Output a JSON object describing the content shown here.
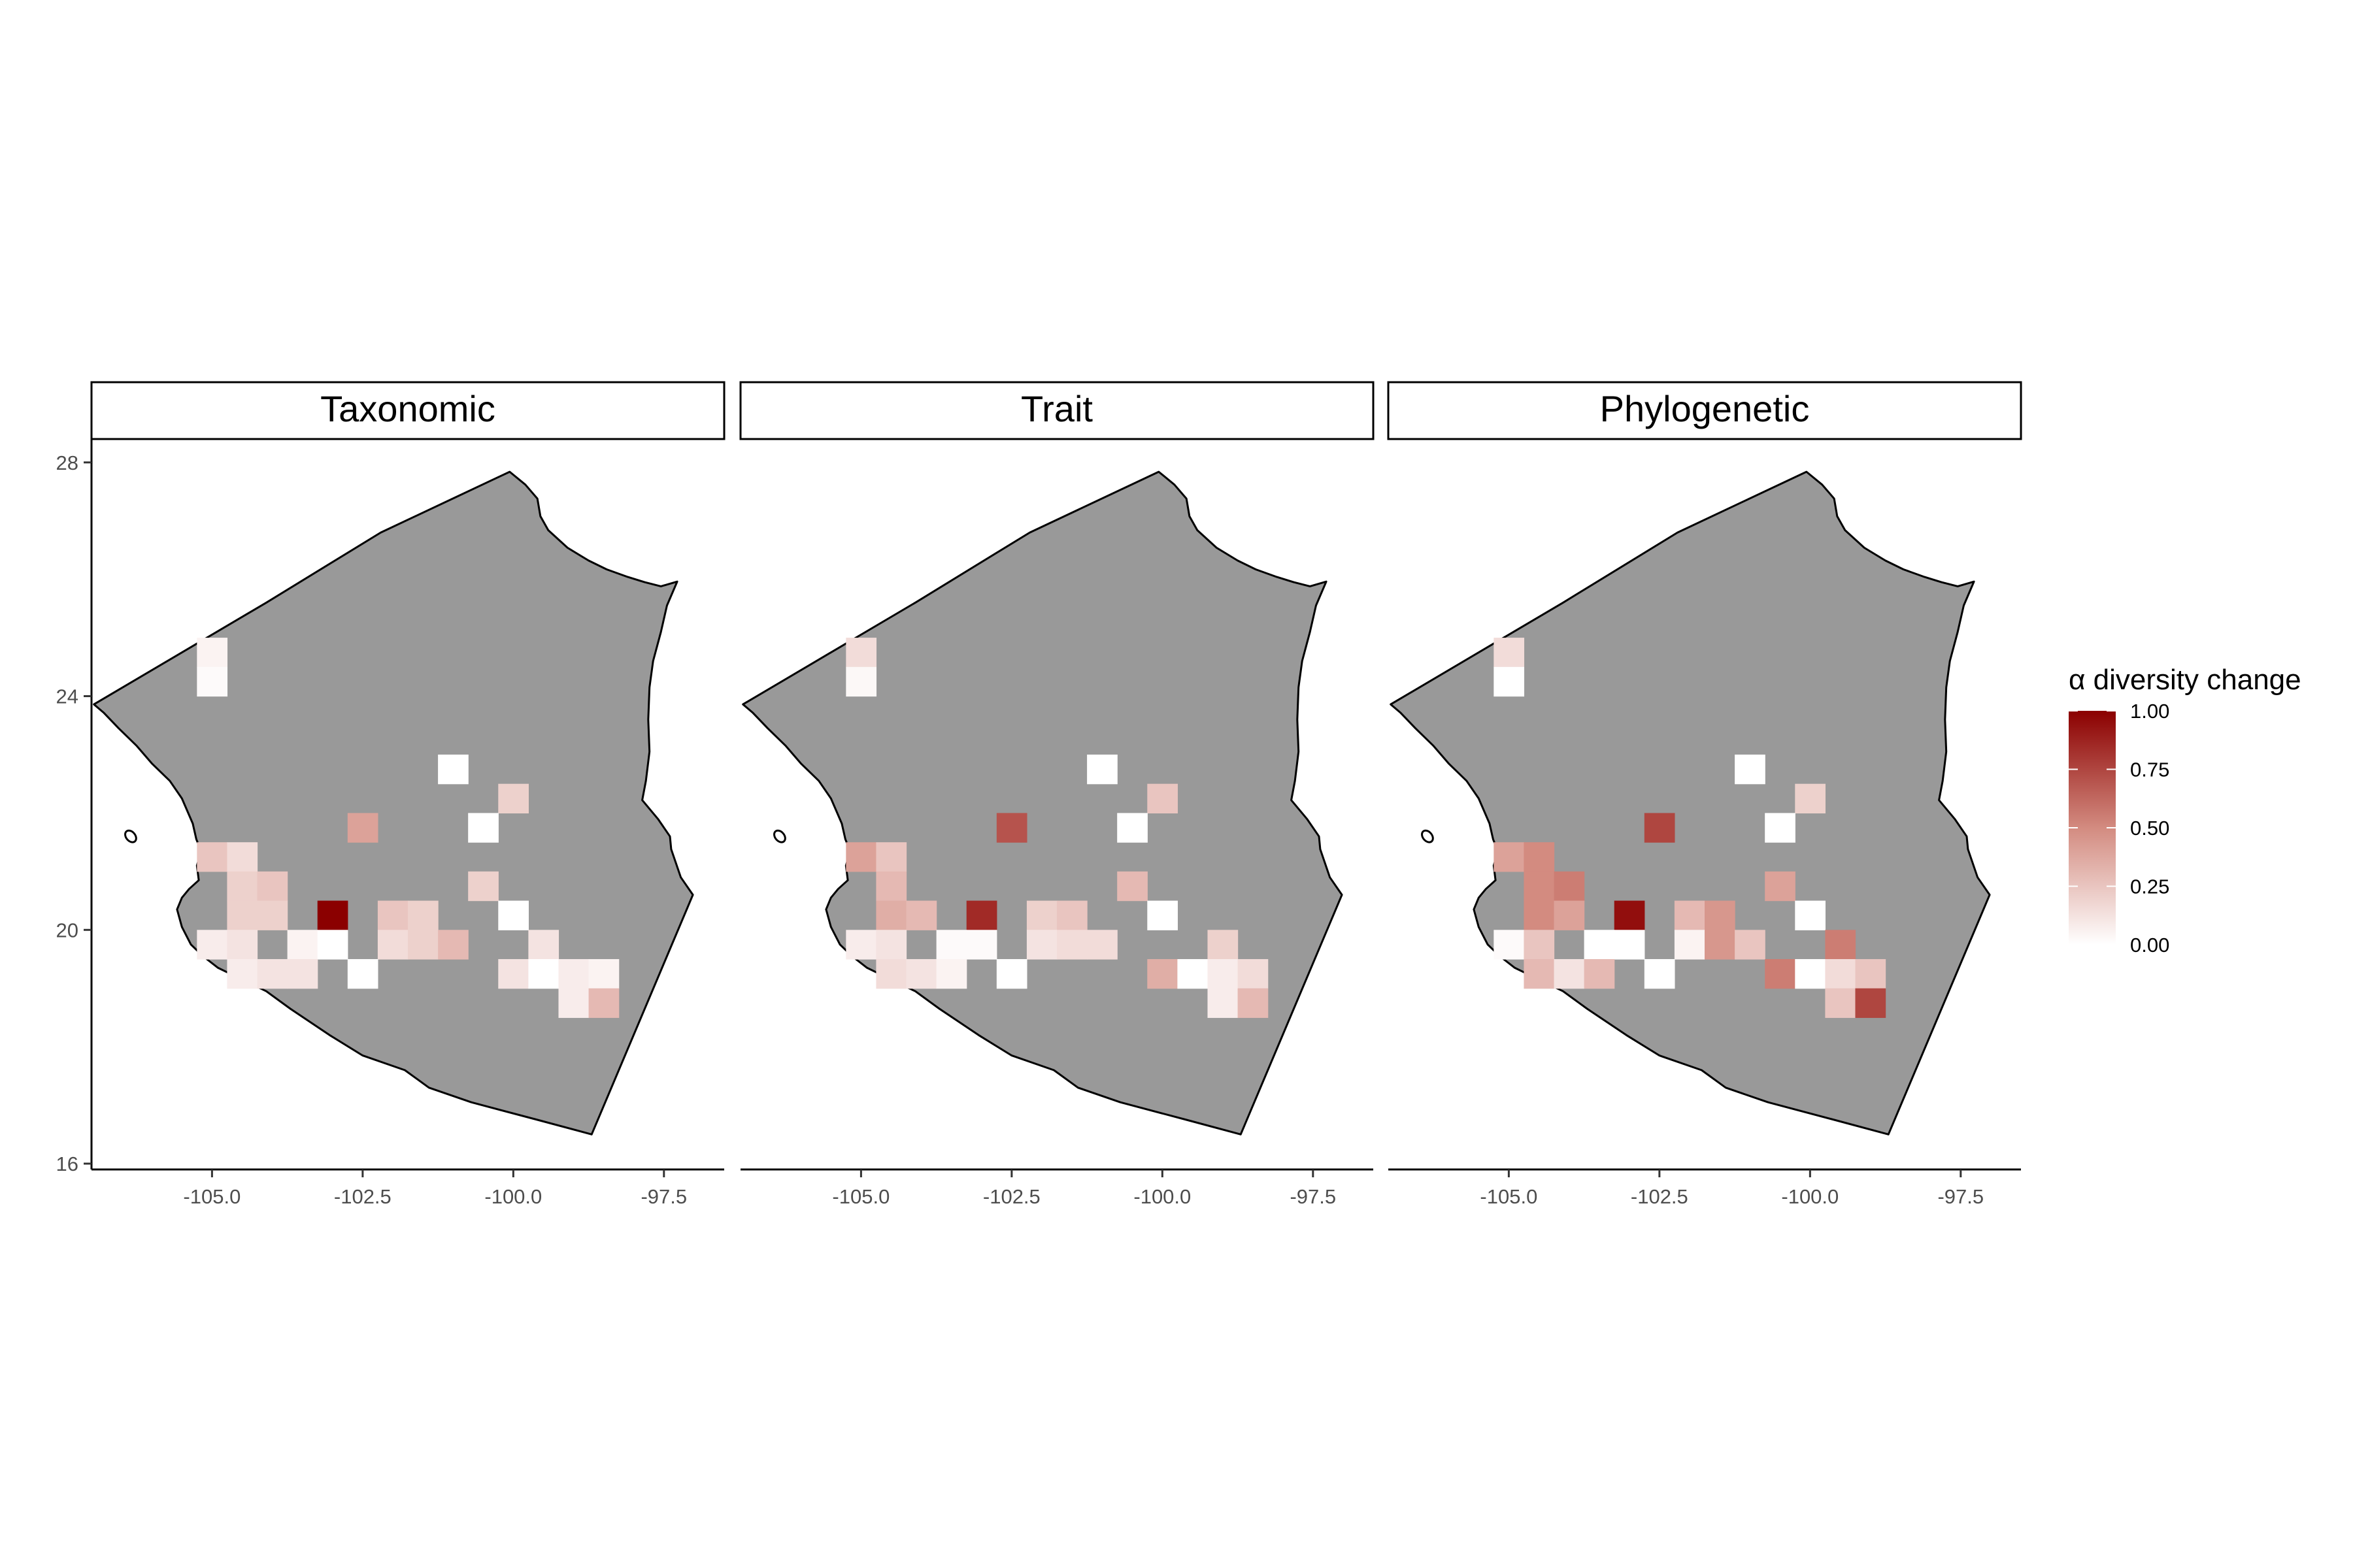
{
  "chart_data": {
    "type": "heatmap",
    "panels": [
      {
        "title": "Taxonomic",
        "cells": [
          {
            "x": -105.0,
            "y": 24.75,
            "value": 0.05
          },
          {
            "x": -105.0,
            "y": 24.25,
            "value": 0.02
          },
          {
            "x": -101.0,
            "y": 22.75,
            "value": 0.0
          },
          {
            "x": -100.0,
            "y": 22.25,
            "value": 0.2
          },
          {
            "x": -102.5,
            "y": 21.75,
            "value": 0.4
          },
          {
            "x": -100.5,
            "y": 21.75,
            "value": 0.0
          },
          {
            "x": -105.0,
            "y": 21.25,
            "value": 0.25
          },
          {
            "x": -104.5,
            "y": 21.25,
            "value": 0.15
          },
          {
            "x": -104.5,
            "y": 20.75,
            "value": 0.2
          },
          {
            "x": -104.0,
            "y": 20.75,
            "value": 0.25
          },
          {
            "x": -100.5,
            "y": 20.75,
            "value": 0.2
          },
          {
            "x": -104.5,
            "y": 20.25,
            "value": 0.2
          },
          {
            "x": -104.0,
            "y": 20.25,
            "value": 0.2
          },
          {
            "x": -103.0,
            "y": 20.25,
            "value": 1.0
          },
          {
            "x": -102.0,
            "y": 20.25,
            "value": 0.25
          },
          {
            "x": -101.5,
            "y": 20.25,
            "value": 0.2
          },
          {
            "x": -100.0,
            "y": 20.25,
            "value": 0.0
          },
          {
            "x": -105.0,
            "y": 19.75,
            "value": 0.08
          },
          {
            "x": -104.5,
            "y": 19.75,
            "value": 0.12
          },
          {
            "x": -103.5,
            "y": 19.75,
            "value": 0.05
          },
          {
            "x": -103.0,
            "y": 19.75,
            "value": 0.0
          },
          {
            "x": -102.0,
            "y": 19.75,
            "value": 0.15
          },
          {
            "x": -101.5,
            "y": 19.75,
            "value": 0.2
          },
          {
            "x": -101.0,
            "y": 19.75,
            "value": 0.3
          },
          {
            "x": -99.5,
            "y": 19.75,
            "value": 0.12
          },
          {
            "x": -104.5,
            "y": 19.25,
            "value": 0.08
          },
          {
            "x": -104.0,
            "y": 19.25,
            "value": 0.12
          },
          {
            "x": -103.5,
            "y": 19.25,
            "value": 0.12
          },
          {
            "x": -102.5,
            "y": 19.25,
            "value": 0.0
          },
          {
            "x": -100.0,
            "y": 19.25,
            "value": 0.12
          },
          {
            "x": -99.5,
            "y": 19.25,
            "value": 0.0
          },
          {
            "x": -99.0,
            "y": 19.25,
            "value": 0.08
          },
          {
            "x": -98.5,
            "y": 19.25,
            "value": 0.05
          },
          {
            "x": -99.0,
            "y": 18.75,
            "value": 0.08
          },
          {
            "x": -98.5,
            "y": 18.75,
            "value": 0.3
          }
        ]
      },
      {
        "title": "Trait",
        "cells": [
          {
            "x": -105.0,
            "y": 24.75,
            "value": 0.15
          },
          {
            "x": -105.0,
            "y": 24.25,
            "value": 0.03
          },
          {
            "x": -101.0,
            "y": 22.75,
            "value": 0.0
          },
          {
            "x": -100.0,
            "y": 22.25,
            "value": 0.25
          },
          {
            "x": -102.5,
            "y": 21.75,
            "value": 0.7
          },
          {
            "x": -100.5,
            "y": 21.75,
            "value": 0.0
          },
          {
            "x": -105.0,
            "y": 21.25,
            "value": 0.4
          },
          {
            "x": -104.5,
            "y": 21.25,
            "value": 0.25
          },
          {
            "x": -104.5,
            "y": 20.75,
            "value": 0.3
          },
          {
            "x": -100.5,
            "y": 20.75,
            "value": 0.3
          },
          {
            "x": -104.5,
            "y": 20.25,
            "value": 0.35
          },
          {
            "x": -104.0,
            "y": 20.25,
            "value": 0.3
          },
          {
            "x": -103.0,
            "y": 20.25,
            "value": 0.85
          },
          {
            "x": -102.0,
            "y": 20.25,
            "value": 0.2
          },
          {
            "x": -101.5,
            "y": 20.25,
            "value": 0.25
          },
          {
            "x": -100.0,
            "y": 20.25,
            "value": 0.0
          },
          {
            "x": -105.0,
            "y": 19.75,
            "value": 0.08
          },
          {
            "x": -104.5,
            "y": 19.75,
            "value": 0.12
          },
          {
            "x": -103.5,
            "y": 19.75,
            "value": 0.02
          },
          {
            "x": -103.0,
            "y": 19.75,
            "value": 0.02
          },
          {
            "x": -102.0,
            "y": 19.75,
            "value": 0.12
          },
          {
            "x": -101.5,
            "y": 19.75,
            "value": 0.15
          },
          {
            "x": -101.0,
            "y": 19.75,
            "value": 0.15
          },
          {
            "x": -99.0,
            "y": 19.75,
            "value": 0.2
          },
          {
            "x": -104.5,
            "y": 19.25,
            "value": 0.15
          },
          {
            "x": -104.0,
            "y": 19.25,
            "value": 0.12
          },
          {
            "x": -103.5,
            "y": 19.25,
            "value": 0.05
          },
          {
            "x": -102.5,
            "y": 19.25,
            "value": 0.0
          },
          {
            "x": -100.0,
            "y": 19.25,
            "value": 0.35
          },
          {
            "x": -99.5,
            "y": 19.25,
            "value": 0.0
          },
          {
            "x": -99.0,
            "y": 19.25,
            "value": 0.08
          },
          {
            "x": -98.5,
            "y": 19.25,
            "value": 0.15
          },
          {
            "x": -99.0,
            "y": 18.75,
            "value": 0.08
          },
          {
            "x": -98.5,
            "y": 18.75,
            "value": 0.3
          }
        ]
      },
      {
        "title": "Phylogenetic",
        "cells": [
          {
            "x": -105.0,
            "y": 24.75,
            "value": 0.15
          },
          {
            "x": -105.0,
            "y": 24.25,
            "value": 0.0
          },
          {
            "x": -101.0,
            "y": 22.75,
            "value": 0.0
          },
          {
            "x": -100.0,
            "y": 22.25,
            "value": 0.2
          },
          {
            "x": -102.5,
            "y": 21.75,
            "value": 0.75
          },
          {
            "x": -100.5,
            "y": 21.75,
            "value": 0.0
          },
          {
            "x": -105.0,
            "y": 21.25,
            "value": 0.4
          },
          {
            "x": -104.5,
            "y": 21.25,
            "value": 0.5
          },
          {
            "x": -104.5,
            "y": 20.75,
            "value": 0.5
          },
          {
            "x": -104.0,
            "y": 20.75,
            "value": 0.55
          },
          {
            "x": -100.5,
            "y": 20.75,
            "value": 0.4
          },
          {
            "x": -104.5,
            "y": 20.25,
            "value": 0.5
          },
          {
            "x": -104.0,
            "y": 20.25,
            "value": 0.4
          },
          {
            "x": -103.0,
            "y": 20.25,
            "value": 0.95
          },
          {
            "x": -102.0,
            "y": 20.25,
            "value": 0.3
          },
          {
            "x": -101.5,
            "y": 20.25,
            "value": 0.45
          },
          {
            "x": -100.0,
            "y": 20.25,
            "value": 0.0
          },
          {
            "x": -105.0,
            "y": 19.75,
            "value": 0.02
          },
          {
            "x": -104.5,
            "y": 19.75,
            "value": 0.25
          },
          {
            "x": -103.5,
            "y": 19.75,
            "value": 0.0
          },
          {
            "x": -103.0,
            "y": 19.75,
            "value": 0.0
          },
          {
            "x": -102.0,
            "y": 19.75,
            "value": 0.05
          },
          {
            "x": -101.5,
            "y": 19.75,
            "value": 0.45
          },
          {
            "x": -101.0,
            "y": 19.75,
            "value": 0.25
          },
          {
            "x": -99.5,
            "y": 19.75,
            "value": 0.55
          },
          {
            "x": -104.5,
            "y": 19.25,
            "value": 0.3
          },
          {
            "x": -104.0,
            "y": 19.25,
            "value": 0.12
          },
          {
            "x": -103.5,
            "y": 19.25,
            "value": 0.3
          },
          {
            "x": -102.5,
            "y": 19.25,
            "value": 0.0
          },
          {
            "x": -100.5,
            "y": 19.25,
            "value": 0.55
          },
          {
            "x": -100.0,
            "y": 19.25,
            "value": 0.0
          },
          {
            "x": -99.5,
            "y": 19.25,
            "value": 0.15
          },
          {
            "x": -99.0,
            "y": 19.25,
            "value": 0.25
          },
          {
            "x": -99.5,
            "y": 18.75,
            "value": 0.25
          },
          {
            "x": -99.0,
            "y": 18.75,
            "value": 0.75
          }
        ]
      }
    ],
    "cell_size": 0.5,
    "xlim": [
      -107.0,
      -96.5
    ],
    "ylim": [
      15.9,
      28.4
    ],
    "x_ticks": [
      -105.0,
      -102.5,
      -100.0,
      -97.5
    ],
    "x_tick_labels": [
      "-105.0",
      "-102.5",
      "-100.0",
      "-97.5"
    ],
    "y_ticks": [
      16,
      20,
      24,
      28
    ],
    "y_tick_labels": [
      "16",
      "20",
      "24",
      "28"
    ],
    "background_region": {
      "fill": "#999999",
      "outline": [
        [
          -106.96,
          23.86
        ],
        [
          -104.1,
          25.6
        ],
        [
          -102.2,
          26.8
        ],
        [
          -100.06,
          27.84
        ],
        [
          -99.8,
          27.62
        ],
        [
          -99.6,
          27.38
        ],
        [
          -99.55,
          27.08
        ],
        [
          -99.42,
          26.84
        ],
        [
          -99.1,
          26.54
        ],
        [
          -98.75,
          26.32
        ],
        [
          -98.45,
          26.17
        ],
        [
          -98.1,
          26.04
        ],
        [
          -97.82,
          25.95
        ],
        [
          -97.55,
          25.88
        ],
        [
          -97.28,
          25.96
        ],
        [
          -97.45,
          25.55
        ],
        [
          -97.55,
          25.1
        ],
        [
          -97.68,
          24.6
        ],
        [
          -97.74,
          24.15
        ],
        [
          -97.76,
          23.6
        ],
        [
          -97.74,
          23.05
        ],
        [
          -97.8,
          22.55
        ],
        [
          -97.86,
          22.22
        ],
        [
          -97.6,
          21.9
        ],
        [
          -97.4,
          21.6
        ],
        [
          -97.38,
          21.38
        ],
        [
          -97.22,
          20.9
        ],
        [
          -97.02,
          20.6
        ],
        [
          -98.7,
          16.5
        ],
        [
          -99.6,
          16.75
        ],
        [
          -100.7,
          17.05
        ],
        [
          -101.4,
          17.3
        ],
        [
          -101.8,
          17.6
        ],
        [
          -102.5,
          17.85
        ],
        [
          -103.05,
          18.2
        ],
        [
          -103.7,
          18.65
        ],
        [
          -104.1,
          18.95
        ],
        [
          -104.6,
          19.2
        ],
        [
          -104.9,
          19.35
        ],
        [
          -105.15,
          19.55
        ],
        [
          -105.35,
          19.75
        ],
        [
          -105.5,
          20.05
        ],
        [
          -105.58,
          20.35
        ],
        [
          -105.5,
          20.55
        ],
        [
          -105.38,
          20.7
        ],
        [
          -105.22,
          20.85
        ],
        [
          -105.25,
          21.1
        ],
        [
          -105.18,
          21.35
        ],
        [
          -105.26,
          21.55
        ],
        [
          -105.32,
          21.82
        ],
        [
          -105.5,
          22.25
        ],
        [
          -105.7,
          22.55
        ],
        [
          -106.0,
          22.85
        ],
        [
          -106.25,
          23.15
        ],
        [
          -106.55,
          23.45
        ],
        [
          -106.8,
          23.72
        ],
        [
          -106.96,
          23.86
        ]
      ],
      "islands": [
        [
          -106.35,
          21.6
        ]
      ]
    },
    "legend": {
      "title": "α diversity change",
      "min": 0,
      "max": 1,
      "ticks": [
        1.0,
        0.75,
        0.5,
        0.25,
        0.0
      ],
      "tick_labels": [
        "1.00",
        "0.75",
        "0.50",
        "0.25",
        "0.00"
      ],
      "low_color": "#ffffff",
      "mid_color": "#d38b80",
      "high_color": "#8b0000",
      "position": "right"
    },
    "grid": false
  }
}
